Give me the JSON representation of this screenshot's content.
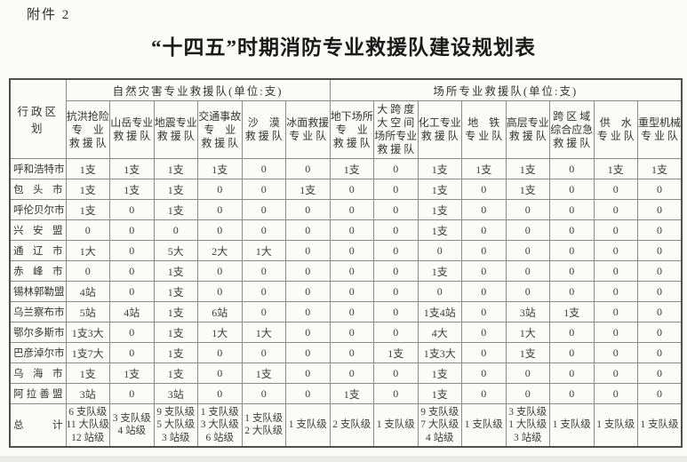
{
  "page": {
    "attachment_label": "附件 2",
    "title": "“十四五”时期消防专业救援队建设规划表"
  },
  "table": {
    "corner_header": "行政区划",
    "groups": [
      {
        "label": "自然灾害专业救援队(单位:支)",
        "span": 6
      },
      {
        "label": "场所专业救援队(单位:支)",
        "span": 8
      }
    ],
    "columns": [
      "抗洪抢险\n专　业\n救 援 队",
      "山岳专业\n救 援 队",
      "地震专业\n救 援 队",
      "交通事故\n专　业\n救 援 队",
      "沙　漠\n救 援 队",
      "冰面救援\n专 业 队",
      "地下场所\n专　业\n救 援 队",
      "大 跨 度\n大 空 间\n场所专业\n救 援 队",
      "化工专业\n救 援 队",
      "地　铁\n专 业 队",
      "高层专业\n救 援 队",
      "跨 区 域\n综合应急\n救 援 队",
      "供　水\n专 业 队",
      "重型机械\n专 业 队"
    ],
    "rows": [
      {
        "region": "呼和浩特市",
        "values": [
          "1支",
          "1支",
          "1支",
          "1支",
          "0",
          "0",
          "1支",
          "0",
          "1支",
          "1支",
          "1支",
          "0",
          "1支",
          "1支"
        ]
      },
      {
        "region": "包头市",
        "values": [
          "1支",
          "1支",
          "1支",
          "0",
          "0",
          "1支",
          "0",
          "0",
          "1支",
          "0",
          "1支",
          "0",
          "0",
          "0"
        ]
      },
      {
        "region": "呼伦贝尔市",
        "values": [
          "1支",
          "0",
          "1支",
          "0",
          "0",
          "0",
          "0",
          "0",
          "1支",
          "0",
          "0",
          "0",
          "0",
          "0"
        ]
      },
      {
        "region": "兴安盟",
        "values": [
          "0",
          "0",
          "0",
          "0",
          "0",
          "0",
          "0",
          "0",
          "1支",
          "0",
          "0",
          "0",
          "0",
          "0"
        ]
      },
      {
        "region": "通辽市",
        "values": [
          "1大",
          "0",
          "5大",
          "2大",
          "1大",
          "0",
          "0",
          "0",
          "0",
          "0",
          "0",
          "0",
          "0",
          "0"
        ]
      },
      {
        "region": "赤峰市",
        "values": [
          "0",
          "0",
          "1支",
          "0",
          "0",
          "0",
          "0",
          "0",
          "1支",
          "0",
          "0",
          "0",
          "0",
          "0"
        ]
      },
      {
        "region": "锡林郭勒盟",
        "values": [
          "4站",
          "0",
          "1支",
          "0",
          "0",
          "0",
          "0",
          "0",
          "0",
          "0",
          "0",
          "0",
          "0",
          "0"
        ]
      },
      {
        "region": "乌兰察布市",
        "values": [
          "5站",
          "4站",
          "1支",
          "6站",
          "0",
          "0",
          "0",
          "0",
          "1支4站",
          "0",
          "3站",
          "1支",
          "0",
          "0"
        ]
      },
      {
        "region": "鄂尔多斯市",
        "values": [
          "1支3大",
          "0",
          "1支",
          "1大",
          "1大",
          "0",
          "0",
          "0",
          "4大",
          "0",
          "1大",
          "0",
          "0",
          "0"
        ]
      },
      {
        "region": "巴彦淖尔市",
        "values": [
          "1支7大",
          "0",
          "1支",
          "0",
          "0",
          "0",
          "0",
          "1支",
          "1支3大",
          "0",
          "1支",
          "0",
          "0",
          "0"
        ]
      },
      {
        "region": "乌海市",
        "values": [
          "1支",
          "1支",
          "1支",
          "0",
          "1支",
          "0",
          "0",
          "0",
          "1支",
          "0",
          "0",
          "0",
          "0",
          "0"
        ]
      },
      {
        "region": "阿拉善盟",
        "values": [
          "3站",
          "0",
          "3站",
          "0",
          "0",
          "0",
          "1支",
          "0",
          "1支",
          "0",
          "0",
          "0",
          "0",
          "0"
        ]
      }
    ],
    "total_row": {
      "region": "总计",
      "values": [
        "6 支队级\n11 大队级\n12 站级",
        "3 支队级\n4 站级",
        "9 支队级\n5 大队级\n3 站级",
        "1 支队级\n3 大队级\n6 站级",
        "1 支队级\n2 大队级",
        "1 支队级",
        "2 支队级",
        "1 支队级",
        "9 支队级\n7 大队级\n4 站级",
        "1 支队级",
        "3 支队级\n1 大队级\n3 站级",
        "1 支队级",
        "1 支队级",
        "1 支队级"
      ]
    }
  },
  "colors": {
    "page_bg": "#fbfbf9",
    "text": "#3d3d3d",
    "title_text": "#1a1a1a",
    "inner_border": "#8a8a8a",
    "outer_border": "#4f4f4f",
    "bottom_shadow": "#e9e9e6"
  }
}
